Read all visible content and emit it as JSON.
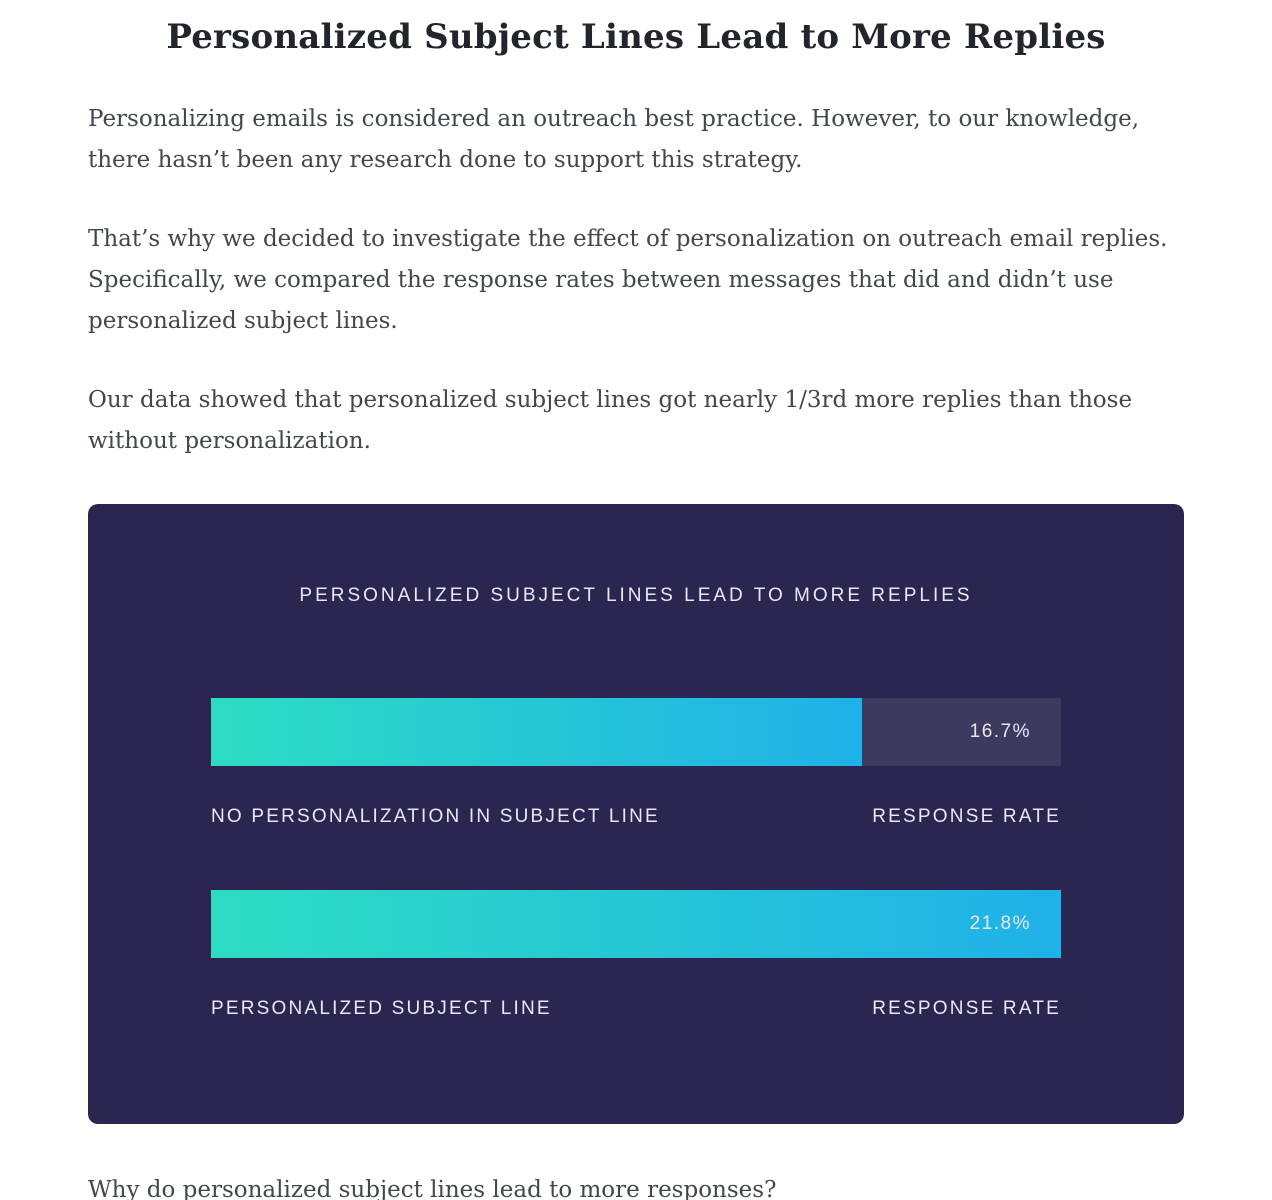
{
  "article": {
    "heading": "Personalized Subject Lines Lead to More Replies",
    "paragraphs": [
      "Personalizing emails is considered an outreach best practice. However, to our knowledge, there hasn’t been any research done to support this strategy.",
      "That’s why we decided to investigate the effect of personalization on outreach email replies. Specifically, we compared the response rates between messages that did and didn’t use personalized subject lines.",
      "Our data showed that personalized subject lines got nearly 1/3rd more replies than those without personalization."
    ],
    "closing_question": "Why do personalized subject lines lead to more responses?"
  },
  "chart": {
    "title": "PERSONALIZED SUBJECT LINES LEAD TO MORE REPLIES",
    "bars": [
      {
        "label": "NO PERSONALIZATION IN SUBJECT LINE",
        "value_label": "RESPONSE RATE",
        "display": "16.7%",
        "value": 16.7,
        "fill_width": "76.6%"
      },
      {
        "label": "PERSONALIZED SUBJECT LINE",
        "value_label": "RESPONSE RATE",
        "display": "21.8%",
        "value": 21.8,
        "fill_width": "100%"
      }
    ]
  },
  "chart_data": {
    "type": "bar",
    "orientation": "horizontal",
    "title": "PERSONALIZED SUBJECT LINES LEAD TO MORE REPLIES",
    "categories": [
      "NO PERSONALIZATION IN SUBJECT LINE",
      "PERSONALIZED SUBJECT LINE"
    ],
    "values": [
      16.7,
      21.8
    ],
    "unit": "%",
    "value_axis_label": "RESPONSE RATE",
    "xlim": [
      0,
      21.8
    ],
    "grid": false,
    "legend": false,
    "data_labels": [
      "16.7%",
      "21.8%"
    ]
  },
  "colors": {
    "page_bg": "#ffffff",
    "heading_text": "#21262c",
    "body_text": "#40474f",
    "panel_bg": "#2b2650",
    "track_bg": "#3e395f",
    "bar_gradient_start": "#2dddc2",
    "bar_gradient_end": "#1fb1e8",
    "chart_text": "#e9e7f2"
  }
}
